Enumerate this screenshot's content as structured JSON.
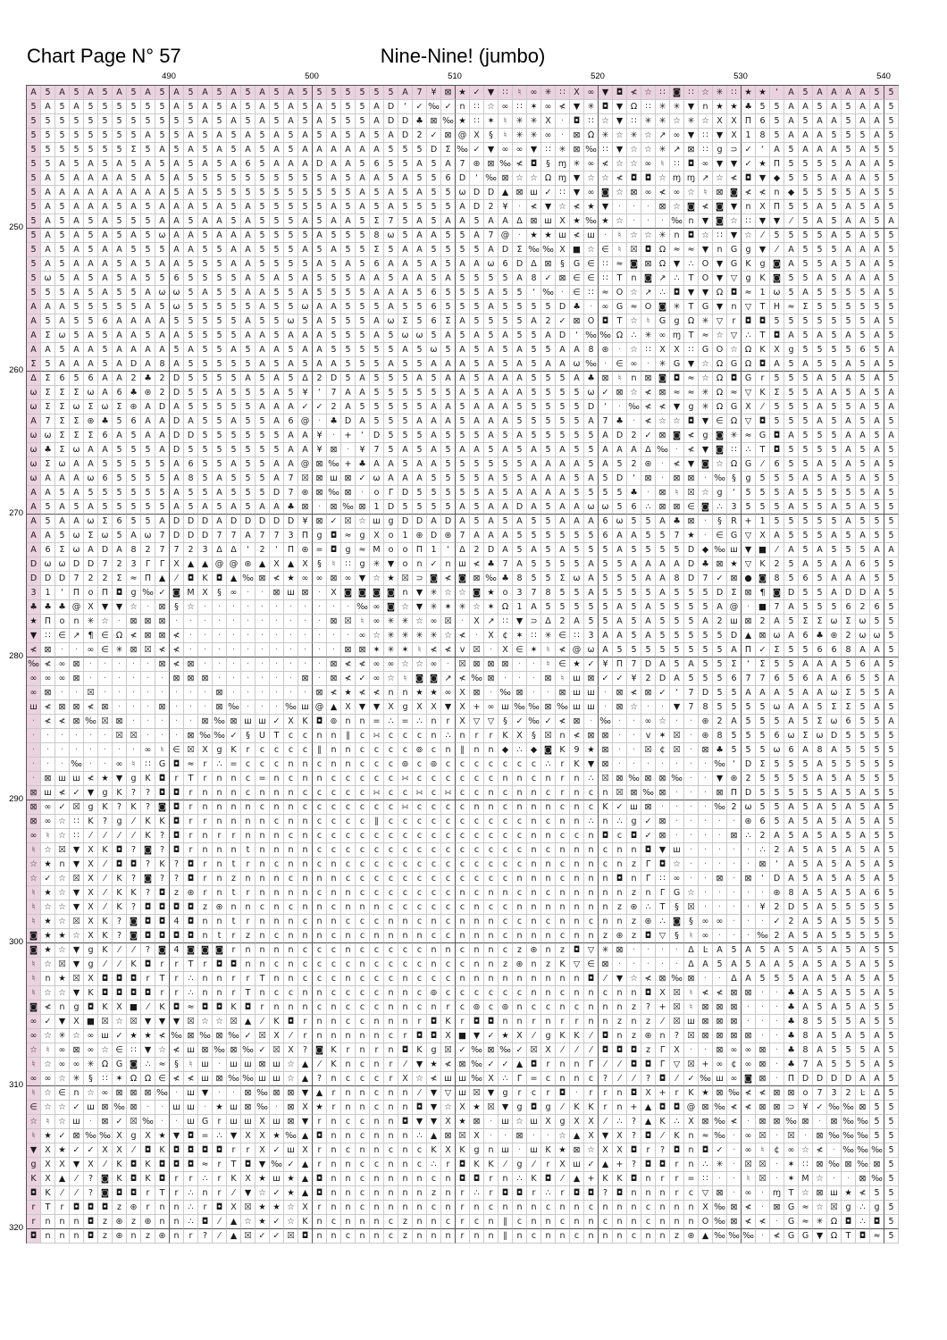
{
  "header": {
    "page_title": "Chart Page N° 57",
    "pattern_title": "Nine-Nine! (jumbo)"
  },
  "axis": {
    "column_labels": [
      "490",
      "500",
      "510",
      "520",
      "530",
      "540"
    ],
    "row_labels": [
      "250",
      "260",
      "270",
      "280",
      "290",
      "300",
      "310",
      "320"
    ],
    "first_column_line": 480,
    "first_row_line": 240
  },
  "colors": {
    "overlap_highlight": "#ead2de",
    "minor_gridline": "#c9c9c9",
    "major_gridline": "#555555",
    "symbol": "#1a1a1a"
  },
  "chart_data": {
    "type": "table",
    "subtype": "cross-stitch-symbol-chart",
    "title": "Nine-Nine! (jumbo)",
    "page": 57,
    "columns": 61,
    "rows": 81,
    "x_ticks": [
      490,
      500,
      510,
      520,
      530,
      540
    ],
    "y_ticks": [
      250,
      260,
      270,
      280,
      290,
      300,
      310,
      320
    ],
    "highlighted_first_row": true,
    "highlighted_first_column": true,
    "pad_char": "5",
    "grid": [
      "A5A5A5A5A5A5A5A5A5A5555555A7¥⊠★✓▼∷♮∞✳∷Χ∞▼◘≮☆∷◙∷☆✳∷★★‘A5AAAA55",
      "5A5A555555A5A5A5A5A5A555AD‘✓‰✓n∷☆∞∷✶∞≮▼✳◘▼Ω∷✳✳▼n★★♣55AA5A5AA",
      "555555555555A5A5A5A5A555ADD♣⊠‰★∷✶♮✳✳Χ·◘∷☆▼∷✳✳☆✳☆ΧΧΠ65A5AA5AA",
      "55555555A55A5A5A5A5A5A5A5AD2✓⊠@Χ§♮✳✳∞·⊠Ω✳☆✳☆↗∞▼∷▼Χ185AAA555A",
      "5555555Σ5A5A5A5A5A5AAAAAA555DΣ‰✓▼∞∞▼∷✳⊠‰∷▼☆☆✳↗⊠∷g⊃✓‘A5AAA5A5",
      "55A5A5A5A5A5A5A65AAADAA5655A5A7⊛⊠‰≮◘§ɱ✳∞≮☆☆∞♮∷◘∞▼▼✓★Π5555AAA",
      "5A5AAAA5A5A5555555555A5AA5A556D‘‰⊠☆☆Ωɱ▼☆☆≮◘◘☆ɱɱ↗☆≮◘▼◆555AAA55",
      "5AAAAAAAAA5A55555555555A5A5A55ωDD▲⊠ш✓∷▼∞◙☆⊠∞≮∞☆♮⊠◙≮≮n◆5555A55",
      "5A5AAA5A5AAA5A5A55555A5A5A5555AD2¥·≮▼☆≮★▼···⊠☆◙≮◙▼nΧΠ55A5A5A5",
      "5A5A5A555AA5AA5A555A5AA5Σ75A5AA5AAΔ⊠шΧ★‰★☆···‰n▼◙☆∷▼▼⁄5A5AA5A",
      "5A5A5A5A5ωAA5AAA5555A5558ω5AA55A7@·★★ш≮ш·♮☆☆✳n◘☆∷▼☆⁄5555A5A5",
      "5A5A5AA555AA55AA555A5A55Σ5AA5555ADΣ‰‰Χ■☆∈♮☒◘Ω≈≈▼nGg▼⁄A555AAA5",
      "5A5AAA5A5AA555AA5555A5A56AA5A5AAω6DΔ⊠§G∈∷≈◙⊠Ω▼∴O▼GKg◙A55A5AA5",
      "5ω5A5A5A5565555A5A5A555AA5AA5A5555A8✓⊠∈∈∷Tn◙↗∴TO▼▽gK◙55A5AAA5",
      "555A5A55Aωω5A55AA55A5555AAA56555A55‘‰·∈∷≈O☆↗∴◘▼▼Ω◘≈1ω5A5555A5",
      "AAA55555A5ω55555A55ωAA555A556555A5555D♣·∞G≈O◙✳TG▼n▽TH≈Σ555555A",
      "A5A556AAAA55555A55ω5A555AωΣ56ΣA5555A2✓⊠O◘T☆♮GgΩ✳▽r◘◘5555555A",
      "AΣω5A5AA5AA5555AA5AAA555A5ωω5A5A5A55AD‘‰‰Ω∴✳∞ɱT≈☆▽∴T◘A5A5A5A5",
      "AA5AA5AAAA5A55A5AA5AA55555A5ω5A5A5A55AA8⊛·☆∷ΧΧ∷GO☆ΩKΧg555565A",
      "Σ5AAA5ADA8A55555A5A5AA555A55AAA5A5A5AAω‰·∈∞·✳G▼☆ΩGΩ◘A5A55A5A5",
      "ΔΣ656AA2♣2D5555A5A5Δ2D5A555A5AA5AAA555A♣⊠♮n⊠◙◘≈☆Ω◘Gr555A5A5A5",
      "ωΣΣΣωA6♣⊛2D55A555A5¥‘7AA555555A5AAA5555ω✓⊠☆≮⊠≈≈✳Ω≈▽KΣ55AA5A5A",
      "ωΣΣωΣωΣ⊛ADA55555AAA✓✓2A55555AA5AAA55555D‘·‰≮≮▼g✳ΩGΧ⁄555A55A5A",
      "A7ΣΣ⊛♣56AADA55A55A6@·♣DA555AAA5AAA55555A7♣·≮☆☆◘▼∈Ω▽◘555A5A5A5",
      "ωωΣΣΣ6A5AADD555555AA¥·+‘D555A555A5A55555AD2✓⊠◙≮g◙✳≈G◘A555AA5A",
      "ω♣ΣωAA555AD5555555AA¥⊠·¥75A5A5AA5A5A5A55AAAΔ‰·≮▼◙∷∴T◘5555A5A5",
      "ωΣωAA55555A655A55AA@⊠‰+♣AA5AA555555AAAA5A52⊛·≮▼◙☆ΩG⁄655A5A5A5",
      "ωAAAω65555A85A555A7☒⊠ш⊠✓ωAAA5555A55AAA5A5D‘⊠·⊠⊠·‰§g555A5A5A5",
      "AA5A555555A55A555D7⊛⊠‰⊠·oΓD55555A5AAAA5555♣·⊠♮☒☆g‘555A55555A",
      "A5A5A55555A5A5A5AA♣⊠·⊠‰⊠1D5555A5AADA5AAωω56∴⊠⊠∈◙∴3555A55A5A",
      "A5AAωΣ655ADDDADDDDD¥⊠✓☒☆шgDDADA5A5A55AAA6ω55A♣⊠·§R+155555A55",
      "AA5ωΣω5Aω7DDD77A773Πg◘≈gΧo1⊛D⊛7AAA5555556AA557★·∈G▽ΧA555A5A5",
      "A6ΣωADA827723ΔΔ‘2‘Π⊛=◘g≈MooΠ1‘Δ2DA5A5A555A5555D◆‰ш▼■⁄A5A555AA",
      "DωωDD723ΓΓΧ▲▲@@⊛▲Χ▲Χ§♮∷g✳▼on✓nш≮♣7A5555A55AAAAD♣⊠★▽K25A5AA65",
      "DDD722Σ≈Π▲⁄◘K◘▲‰⊠≮★∞∞⊠∞▼☆★☒⊃◙≮◙⊠‰♣855ΣωA555AA8D7✓⊠●◙8565AAA5",
      "31‘ΠoΠ◘g‰✓◙MΧ§∞··⊠ш⊠·Χ◙◙◙◙n▼✳☆☆◙★o37855A5555A555DΣ⊠¶◙D55ADDA",
      "♣♣♣@Χ▼▼☆·⊠§☆···········‰∞◙☆▼✳✶✳☆✶Ω1A55555A5A5555A@·■7A555626",
      "★Πon✳☆·⊠⊠⊠···········⊠☒♮∞✳✳☆∞☒·Χ↗∷▼⊃Δ2A55A5A555A2ш⊠2A5ΣΣωΣω",
      "▼∷∈↗¶∈Ω≮⊠⊠≮············∞☆✳✳✳✳☆≮·Χ¢✶∷✳∈∷3AA5A55555D▲⊠ωA6♣⊛2ωω",
      "≮⊠··∞∈✳⊠☒≮≮···········⊠⊠✶✳✶♮≮≮v☒·Χ∈✶♮≮@ωA55555555AΠ✓Σ55668AA",
      "‰≮∞⊠·····⊠≮⊠·········⊠≮≮∞∞☆☆∞·☒⊠⊠⊠··♮∈★✓¥Π7DA5A55Σ‘Σ55AAA56A",
      "∞∞∞⊠······⊠⊠⊠······⊠·⊠≮✓∞☆♮◙◙↗≮‰⊠···⊠♮ш⊠✓✓¥2DA555677656AA655A",
      "∞⊠··☒········⊠······⊠≮★≮≮nn★★∞Χ⊠·‰⊠··⊠шш·⊠≮⊠✓‘7D55AAA5AAωΣ55A",
      "ш≮⊠⊠≮⊠···⊠···⊠‰···‰ш@▲Χ▼▼ΧgΧΧ▼Χ+∞ш‰‰⊠‰шш·⊠☆··▼785555ωAA5ΣΣ5A5",
      "·≮≮⊠‰☒⊠·····⊠‰⊠шш✓ΧK◘⊚nn=∴=∴nrΧ▽▽§✓‰✓≮⊠·‰··∞☆··⊛2A555A5Σω655A",
      "······☒☒···⊠‰‰✓§UTccnn∥c∺cccn∴nrrKΧ§☒n≮⊠⊠··v✶☒·⊛85556ωΣωD555",
      "········∞♮∈☒ΧgKrcccc∥nncccc⊚cn∥nn◆∴◆◙K9★⊠··☒¢☒·⊠♣555ω6A8A555",
      "···‰··∞♮∷G◘≈r∴=cccnncnnccc⊚c⊚ccccccc∴rK▼⊠·······‰‘DΣ555A5555",
      "·⊠шш≮★▼gK◘rTrnnc=ncnnccccc∺ccccccnncnrn∴☒⊠‰⊠⊠‰··▼⊛25555A5A5",
      "⊠ш≮✓▼gK??◘◘rnnncnnnccccc∺cc∺c∺ccncnncrncn☒⊠‰⊠···⊠ΠD55555A5A",
      "⊠∞✓☒gK?K?◙◘rnnnncnnccccccc∺ccccnncnnncncK✓ш⊠····‰2ω55A5A5A5A",
      "⊠∞☆∷K?g⁄KK◘rrnnnncnncccc∥ccccccccccncnn∴n∴g✓⊠·····⊛65A5A5A5A",
      "∞♮☆∷⁄⁄⁄⁄K?◘rnrrnnncncccccccccccccccnnccn◘c◘✓⊠····⊠∴2A5A5A5A5",
      "♮☆☒▼ΧK◘?◙?◘rnnntnnnncccccccccccccccncnnncnn◘▼ш·····∴2A5A5A5A",
      "☆★n▼Χ⁄◘◘?K?◘rntrncnncncccccccccccccnncnncnzΓ◘☆·····⊠‘A5A5A5A",
      "☆✓☆☒Χ⁄K?◙??◘rnznnncnnnccccccccccccnnncnnn◘nΓ∷∞··⊠·⊠‘DA5A5A5A",
      "♮★☆▼Χ⁄KK?◘z⊛rntrnnnncnncccccccncnncncnnnnnznΓG☆·····⊛8A5A5A6",
      "♮☆☆▼Χ⁄K?◘◘◘◘z⊛nncncnncnnnccccccnccnnnnnnnz⊛∴T§☒····¥2D5A5555",
      "♮★☆☒ΧK?◙◘◘4◘nntrnnncnncccnncncnnnccncnncnnz⊛∴◙§∞∞···✓2A5A555",
      "◙★★☆ΧK?◙◘◘◘◘ntrzncnnncncnnnnccnnncnnncnnz⊛z◘▽§♮∞···‰2A5A5555",
      "◙★☆▼gK⁄⁄?◙4◙◙◙rnnnncccncccccnncnncz⊛nz◘▽✳⊠····ΔĿA5A5A5A5A5A",
      "♮☆☒▼g⁄⁄K◘rrTr◘◘nncnccccnccccnccnnz⊛nzK▽∈⊠·····ΔA5A5AA5A5A5A",
      "♮n★☒Χ◘◘◘rTr∴nnrrTnncccncccncccnnnnnnnnn◘⁄▼☆≮⊠‰⊠··ΔA555AA5A5A",
      "♮☆☆▼K◘◘◘◘rr∴nnrTnccnnccccnnc⊚ccccccnncnncnn◘Χ☒♮≮≮⊠⊠··♣A5A55A",
      "◙≮ng◘KΧ■⁄K◘≈◘◘K◘rnnncncccnncnrc⊚c⊚nccncnnnz?+☒♮⊠⊠⊠···♣A5A5A5",
      "∞✓▼Χ■☒☆☒▼▼▼☒☆☆☒▲⁄K◘rnnccnnnr◘Kr◘◘nnrnrrnnznz⁄☒ш⊠⊠⊠···♣8555A5",
      "∞☆✳☆∞ш✓★★≮‰⊠‰⊠‰✓☒Χ⁄rnnnnncr◘◘Χ■▼✓★Χ⁄gKK⁄◘nz⊛n?☒⊠⊠⊠⊠··♣8A5A5A",
      "☆♮∞⊠∞☆∈∷▼☆≮ш⊠‰⊠‰✓☒Χ?◙Krnrn◘Kg☒✓‰⊠‰✓☒Χ⁄⁄⁄◘◘◘zΓΧ··⊠∞∞⊠·♣8A555A",
      "♮☆∞∞✳ΩG◙∴≈§♮ш·шш⊠ш☆▲⁄Kncnr⁄▼★≮⊠‰✓✓▲◘rnnΓ⁄⁄◘◘Γ▽☒+∞¢∞⊠·♣7A555A",
      "∞∞☆✳§∷✶ΩΩ∈≮≮ш⊠‰‰шш☆▲?ncccrΧ☆≮шш‰Χ∴Γ=cnnc?⁄⁄?◘⁄✓‰ш∞◙⊠·ΠDDDDAA",
      "♮☆∈n☆∞⊠⊠⊠‰·ш▼··⊠‰⊠⊠▼▲rnncnn⁄▼▽ш☒▼grcr◘·rrn◘Χ+rK★⊠‰≮≮⊠⊠o732ĿΔ",
      "∈☆☆✓ш⊠‰⊠··шш·★ш⊠‰·⊠Χ★rnncnn◘▼☆Χ★☒▼g◘g⁄KKrn+▲◘◘@⊠‰≮≮⊠⊠⊃¥✓‰‰⊠",
      "☆♮☆ш·⊠✓☒‰··шGrшшΧш⊠▼rnccnn◘▼▼Χ★⊠·ш☆шΧgΧΧ⁄∴?▲K∴Χ⊠‰≮·⊠⊠‰⊠·⊠‰‰",
      "♮★✓⊠‰‰ΧgΧ★▼◘=∴▼ΧΧ★‰▲◘nncnnn∴▲⊠☒Χ··⊠··☆▲Χ▼Χ?◘⁄Kn≈‰·∞☒·☒·⊠‰‰‰",
      "▼Χ★✓✓ΧΧ⁄◘K◘◘◘◘rrΧ✓шΧrncnncncKΧKgnш·шK★⊠☆ΧΧ◘r?◘n◘✓·∞♮¢∞☆≮·‰‰‰",
      "gΧΧ▼Χ⁄K◘K◘◘◘≈rT◘▼‰✓▲rnnccnnc∴r◘KK⁄g⁄rΧш✓▲+?◘◘rn∴✳·☒☒·✶∷⊠‰⊠‰⊠",
      "KΧ▲⁄?◙K◘K◘rr∴rKΧ★ш★▲◘nncnnnncn◘◘rn∴K◘⁄▲+KK◘nrr=∷··♮☒·✶M☆··⊠‰",
      "◘K⁄⁄?◙◘◘rTr∴nr⁄▼☆✓★▲◘nncnnnnznr∴r◘◘r∴r◘◘?◘nnnrc▽⊠·∞·ɱT☆⊠ш★≮",
      "rTr◘◘◘z⊛rnn∴r◘Χ☒★★☆ΧrnncnnnncnrncnnncnncnnncnnnΧ‰⊠≮·⊠G≈☆☒g∴g",
      "rnnn◘z⊛z⊛nn∴◘⁄▲☆★✓☆Kncnnncznncrcn∥cnncnncnncnnnO‰⊠≮≮·G≈✳Ω◘∴◘",
      "◘nnn◘z⊛nz⊛nr?⁄▲☒✓✓☒◘nncnncznnnrnn∥ncnncnnncnnz⊛▲‰‰‰·≮GG▼ΩT◘≈"
    ]
  }
}
